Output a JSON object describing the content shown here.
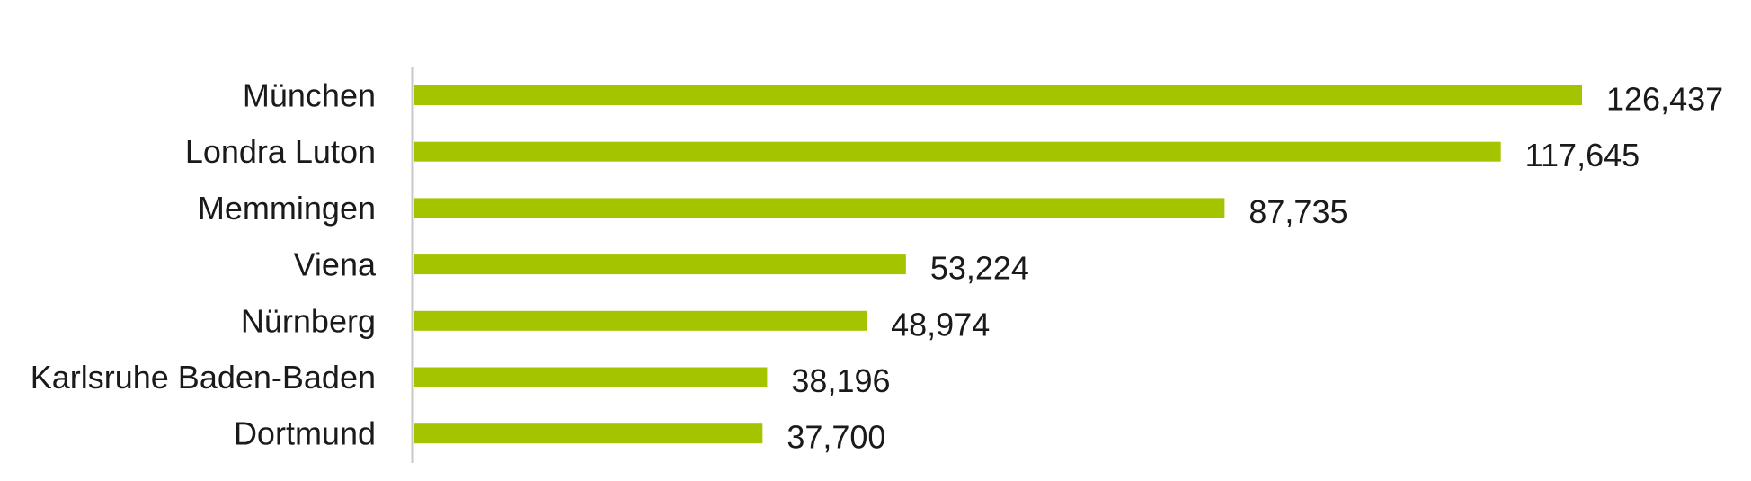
{
  "chart_data": {
    "type": "bar",
    "orientation": "horizontal",
    "categories": [
      "München",
      "Londra Luton",
      "Memmingen",
      "Viena",
      "Nürnberg",
      "Karlsruhe Baden-Baden",
      "Dortmund"
    ],
    "values": [
      126437,
      117645,
      87735,
      53224,
      48974,
      38196,
      37700
    ],
    "value_labels": [
      "126,437",
      "117,645",
      "87,735",
      "53,224",
      "48,974",
      "38,196",
      "37,700"
    ],
    "title": "",
    "xlabel": "",
    "ylabel": "",
    "xlim": [
      0,
      126437
    ],
    "grid": false,
    "legend": "none",
    "colors": {
      "bar": "#a5c400",
      "axis": "#c8c8c8",
      "text": "#1a1a1a"
    }
  }
}
